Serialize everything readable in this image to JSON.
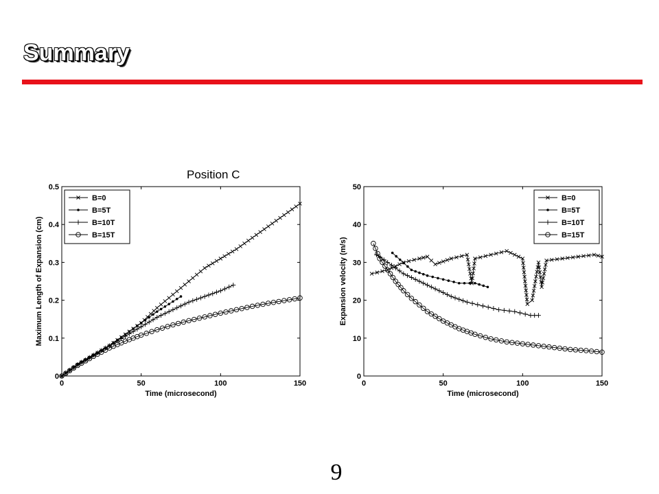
{
  "slide": {
    "title": "Summary",
    "page_number": "9",
    "title_rule_color": "#e8121a"
  },
  "chart_data": [
    {
      "type": "line",
      "title": "Position C",
      "xlabel": "Time (microsecond)",
      "ylabel": "Maximum Length of Expansion (cm)",
      "xlim": [
        0,
        150
      ],
      "ylim": [
        0,
        0.5
      ],
      "xticks": [
        "0",
        "50",
        "100",
        "150"
      ],
      "yticks": [
        "0",
        "0.1",
        "0.2",
        "0.3",
        "0.4",
        "0.5"
      ],
      "grid": false,
      "legend_position": "top-left",
      "series": [
        {
          "name": "B=0",
          "marker": "x",
          "x": [
            0,
            10,
            20,
            30,
            40,
            50,
            60,
            70,
            80,
            90,
            100,
            110,
            120,
            130,
            140,
            150
          ],
          "y": [
            0,
            0.03,
            0.055,
            0.08,
            0.11,
            0.14,
            0.18,
            0.215,
            0.25,
            0.285,
            0.31,
            0.335,
            0.365,
            0.395,
            0.425,
            0.455
          ]
        },
        {
          "name": "B=5T",
          "marker": "dot",
          "x": [
            0,
            10,
            20,
            30,
            40,
            50,
            60,
            75
          ],
          "y": [
            0,
            0.03,
            0.055,
            0.08,
            0.11,
            0.14,
            0.17,
            0.21
          ]
        },
        {
          "name": "B=10T",
          "marker": "plus",
          "x": [
            0,
            10,
            20,
            30,
            40,
            50,
            60,
            70,
            80,
            90,
            100,
            108
          ],
          "y": [
            0,
            0.03,
            0.055,
            0.08,
            0.105,
            0.13,
            0.155,
            0.175,
            0.195,
            0.21,
            0.225,
            0.24
          ]
        },
        {
          "name": "B=15T",
          "marker": "circle",
          "x": [
            0,
            10,
            20,
            30,
            40,
            50,
            60,
            70,
            80,
            90,
            100,
            110,
            120,
            130,
            140,
            150
          ],
          "y": [
            0,
            0.028,
            0.052,
            0.074,
            0.092,
            0.108,
            0.122,
            0.135,
            0.146,
            0.156,
            0.166,
            0.175,
            0.184,
            0.192,
            0.199,
            0.206
          ]
        }
      ]
    },
    {
      "type": "line",
      "title": "",
      "xlabel": "Time (microsecond)",
      "ylabel": "Expansion velocity (m/s)",
      "xlim": [
        0,
        150
      ],
      "ylim": [
        0,
        50
      ],
      "xticks": [
        "0",
        "50",
        "100",
        "150"
      ],
      "yticks": [
        "0",
        "10",
        "20",
        "30",
        "40",
        "50"
      ],
      "grid": false,
      "legend_position": "top-right",
      "series": [
        {
          "name": "B=0",
          "marker": "x",
          "x": [
            5,
            15,
            25,
            35,
            40,
            45,
            55,
            65,
            68,
            70,
            80,
            90,
            95,
            100,
            103,
            106,
            110,
            112,
            115,
            125,
            135,
            145,
            150
          ],
          "y": [
            27,
            28,
            30,
            31,
            31.5,
            29.5,
            31,
            32,
            24.5,
            31,
            32,
            33,
            32,
            31,
            19,
            20,
            30,
            23.5,
            30.5,
            31,
            31.5,
            32,
            31.5
          ]
        },
        {
          "name": "B=5T",
          "marker": "dot",
          "x": [
            18,
            30,
            40,
            50,
            60,
            70,
            78
          ],
          "y": [
            32.5,
            28,
            26.5,
            25.5,
            24.5,
            24.5,
            23.5
          ]
        },
        {
          "name": "B=10T",
          "marker": "plus",
          "x": [
            8,
            15,
            25,
            35,
            45,
            55,
            65,
            75,
            85,
            95,
            105,
            110
          ],
          "y": [
            32,
            30,
            27,
            25,
            23,
            21,
            19.5,
            18.5,
            17.5,
            17,
            16,
            16
          ]
        },
        {
          "name": "B=15T",
          "marker": "circle",
          "x": [
            6,
            10,
            15,
            20,
            25,
            30,
            40,
            50,
            60,
            70,
            80,
            90,
            100,
            110,
            120,
            130,
            140,
            150
          ],
          "y": [
            35,
            31,
            28,
            25,
            22.5,
            20.5,
            17,
            14.5,
            12.5,
            11,
            9.8,
            9,
            8.5,
            8,
            7.5,
            7,
            6.7,
            6.3
          ]
        }
      ]
    }
  ]
}
